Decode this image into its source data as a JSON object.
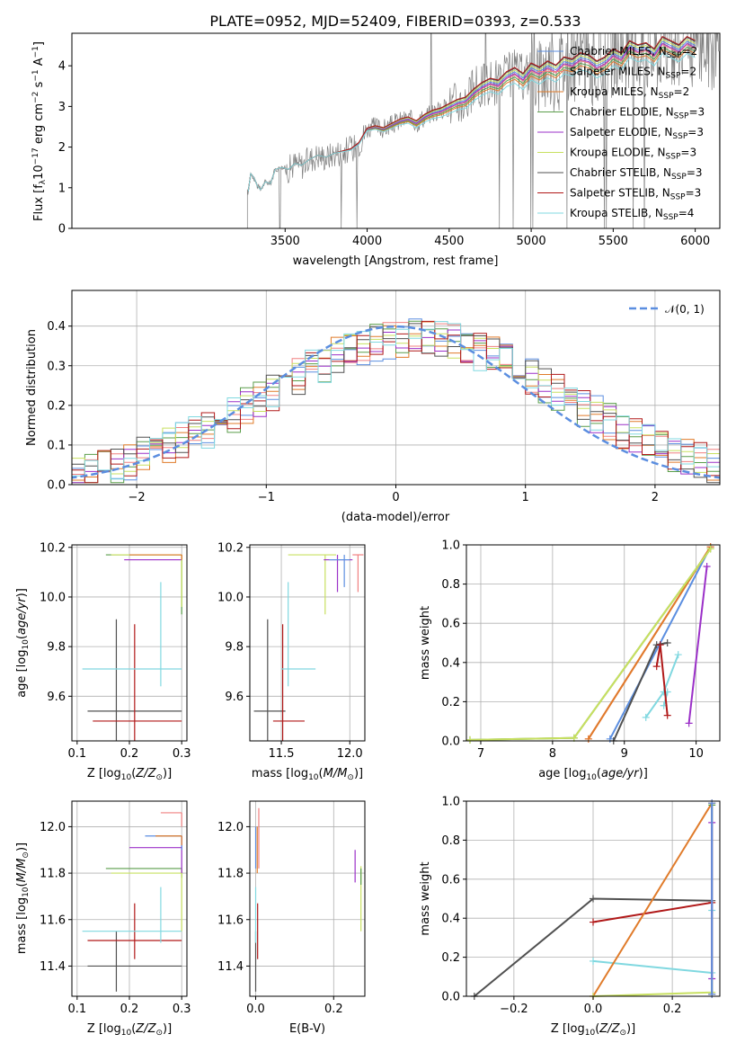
{
  "figure": {
    "title": "PLATE=0952, MJD=52409, FIBERID=0393, z=0.533"
  },
  "colors": {
    "chabrier_miles": "#5b8ee0",
    "salpeter_miles": "#f08080",
    "kroupa_miles": "#e07b2a",
    "chabrier_elodie": "#5a9e4a",
    "salpeter_elodie": "#9b30c8",
    "kroupa_elodie": "#c8e060",
    "chabrier_stelib": "#505050",
    "salpeter_stelib": "#b01818",
    "kroupa_stelib": "#80d8e0",
    "data": "#808080",
    "normal": "#5b8ee0"
  },
  "chart_data": [
    {
      "id": "spectrum",
      "type": "line",
      "title": "PLATE=0952, MJD=52409, FIBERID=0393, z=0.533",
      "xlabel": "wavelength [Angstrom, rest frame]",
      "ylabel": "Flux [f_λ 10^-17 erg cm^-2 s^-1 A^-1]",
      "xlim": [
        2200,
        6150
      ],
      "ylim": [
        0,
        4.8
      ],
      "xticks": [
        "3500",
        "4000",
        "4500",
        "5000",
        "5500",
        "6000"
      ],
      "yticks": [
        "0",
        "1",
        "2",
        "3",
        "4"
      ],
      "legend_position": "right",
      "legend": [
        {
          "label": "Chabrier MILES, N_SSP=2",
          "color": "#5b8ee0"
        },
        {
          "label": "Salpeter MILES, N_SSP=2",
          "color": "#f08080"
        },
        {
          "label": "Kroupa MILES, N_SSP=2",
          "color": "#e07b2a"
        },
        {
          "label": "Chabrier ELODIE, N_SSP=3",
          "color": "#5a9e4a"
        },
        {
          "label": "Salpeter ELODIE, N_SSP=3",
          "color": "#9b30c8"
        },
        {
          "label": "Kroupa ELODIE, N_SSP=3",
          "color": "#c8e060"
        },
        {
          "label": "Chabrier STELIB, N_SSP=3",
          "color": "#505050"
        },
        {
          "label": "Salpeter STELIB, N_SSP=3",
          "color": "#b01818"
        },
        {
          "label": "Kroupa STELIB, N_SSP=4",
          "color": "#80d8e0"
        }
      ],
      "model_x": [
        3275,
        3290,
        3310,
        3330,
        3350,
        3380,
        3410,
        3440,
        3480,
        3520,
        3560,
        3600,
        3650,
        3700,
        3750,
        3800,
        3850,
        3900,
        3950,
        4000,
        4050,
        4100,
        4150,
        4200,
        4250,
        4300,
        4350,
        4400,
        4450,
        4500,
        4550,
        4600,
        4650,
        4700,
        4750,
        4800,
        4850,
        4900,
        4950,
        5000,
        5050,
        5100,
        5150,
        5200,
        5250,
        5300,
        5350,
        5400,
        5450,
        5500,
        5550,
        5600,
        5650,
        5700,
        5750,
        5800,
        5850,
        5900,
        5950,
        6000
      ],
      "model_y": [
        0.9,
        1.35,
        1.25,
        1.05,
        0.95,
        1.15,
        1.1,
        1.45,
        1.5,
        1.45,
        1.6,
        1.55,
        1.7,
        1.8,
        1.75,
        1.85,
        1.9,
        1.95,
        2.1,
        2.45,
        2.5,
        2.45,
        2.55,
        2.65,
        2.7,
        2.6,
        2.75,
        2.85,
        2.9,
        3.0,
        3.1,
        3.15,
        3.35,
        3.5,
        3.6,
        3.55,
        3.75,
        3.85,
        3.7,
        3.95,
        3.85,
        4.0,
        3.9,
        4.1,
        4.05,
        4.2,
        4.15,
        4.0,
        4.1,
        4.3,
        4.2,
        4.5,
        4.4,
        4.45,
        4.3,
        4.6,
        4.5,
        4.4,
        4.6,
        4.5
      ],
      "series_offsets": [
        0,
        -0.08,
        -0.2,
        -0.14,
        -0.05,
        0.05,
        0.1,
        0.12,
        -0.3
      ]
    },
    {
      "id": "residuals",
      "type": "line",
      "xlabel": "(data-model)/error",
      "ylabel": "Normed distribution",
      "xlim": [
        -2.5,
        2.5
      ],
      "ylim": [
        0,
        0.49
      ],
      "xticks": [
        "−2",
        "−1",
        "0",
        "1",
        "2"
      ],
      "yticks": [
        "0.0",
        "0.1",
        "0.2",
        "0.3",
        "0.4"
      ],
      "legend_position": "top-right",
      "legend": [
        {
          "label": "𝒩(0, 1)",
          "color": "#5b8ee0",
          "dashed": true
        }
      ],
      "normal_curve": {
        "mean": 0,
        "sigma": 1
      }
    },
    {
      "id": "age_vs_Z",
      "type": "scatter",
      "xlabel": "Z [log10(Z/Z⊙)]",
      "ylabel": "age  [log10(age/yr)]",
      "xlim": [
        0.09,
        0.31
      ],
      "ylim": [
        9.42,
        10.21
      ],
      "xticks": [
        "0.1",
        "0.2",
        "0.3"
      ],
      "yticks": [
        "9.6",
        "9.8",
        "10.0",
        "10.2"
      ],
      "points": [
        {
          "x": 0.175,
          "y": 9.54,
          "xerr": [
            0.12,
            0.3
          ],
          "yerr": [
            9.4,
            9.91
          ],
          "color": "#505050"
        },
        {
          "x": 0.21,
          "y": 9.5,
          "xerr": [
            0.13,
            0.3
          ],
          "yerr": [
            9.42,
            9.89
          ],
          "color": "#b01818"
        },
        {
          "x": 0.26,
          "y": 9.71,
          "xerr": [
            0.11,
            0.3
          ],
          "yerr": [
            9.64,
            10.06
          ],
          "color": "#80d8e0"
        },
        {
          "x": 0.3,
          "y": 10.17,
          "xerr": [
            0.155,
            0.3
          ],
          "yerr": [
            9.93,
            10.17
          ],
          "color": "#5a9e4a"
        },
        {
          "x": 0.3,
          "y": 10.15,
          "xerr": [
            0.19,
            0.3
          ],
          "yerr": [
            10.15,
            10.17
          ],
          "color": "#9b30c8"
        },
        {
          "x": 0.3,
          "y": 10.17,
          "xerr": [
            0.165,
            0.3
          ],
          "yerr": [
            9.96,
            10.17
          ],
          "color": "#c8e060"
        },
        {
          "x": 0.3,
          "y": 10.17,
          "xerr": [
            0.2,
            0.3
          ],
          "yerr": [
            10.15,
            10.17
          ],
          "color": "#e07b2a"
        }
      ]
    },
    {
      "id": "age_vs_mass",
      "type": "scatter",
      "xlabel": "mass [log10(M/M⊙)]",
      "xlim": [
        11.27,
        12.11
      ],
      "ylim": [
        9.42,
        10.21
      ],
      "xticks": [
        "11.5",
        "12.0"
      ],
      "yticks": [
        "9.6",
        "9.8",
        "10.0",
        "10.2"
      ],
      "points": [
        {
          "x": 11.4,
          "y": 9.54,
          "xerr": [
            11.3,
            11.53
          ],
          "yerr": [
            9.4,
            9.91
          ],
          "color": "#505050"
        },
        {
          "x": 11.51,
          "y": 9.5,
          "xerr": [
            11.44,
            11.67
          ],
          "yerr": [
            9.42,
            9.89
          ],
          "color": "#b01818"
        },
        {
          "x": 11.55,
          "y": 9.71,
          "xerr": [
            11.5,
            11.75
          ],
          "yerr": [
            9.64,
            10.06
          ],
          "color": "#80d8e0"
        },
        {
          "x": 11.82,
          "y": 10.17,
          "xerr": [
            11.55,
            11.9
          ],
          "yerr": [
            9.93,
            10.17
          ],
          "color": "#c8e060"
        },
        {
          "x": 11.91,
          "y": 10.15,
          "xerr": [
            11.81,
            12.02
          ],
          "yerr": [
            10.02,
            10.17
          ],
          "color": "#9b30c8"
        },
        {
          "x": 11.96,
          "y": 10.15,
          "xerr": [
            11.85,
            12.0
          ],
          "yerr": [
            10.04,
            10.17
          ],
          "color": "#5b8ee0"
        },
        {
          "x": 12.06,
          "y": 10.17,
          "xerr": [
            12.02,
            12.1
          ],
          "yerr": [
            10.02,
            10.17
          ],
          "color": "#f08080"
        }
      ]
    },
    {
      "id": "weight_vs_age",
      "type": "line",
      "xlabel": "age  [log10(age/yr)]",
      "ylabel": "mass weight",
      "xlim": [
        6.8,
        10.33
      ],
      "ylim": [
        0,
        1.0
      ],
      "xticks": [
        "7",
        "8",
        "9",
        "10"
      ],
      "yticks": [
        "0.0",
        "0.2",
        "0.4",
        "0.6",
        "0.8",
        "1.0"
      ],
      "series": [
        {
          "color": "#5b8ee0",
          "x": [
            8.8,
            10.2
          ],
          "y": [
            0.01,
            0.99
          ]
        },
        {
          "color": "#f08080",
          "x": [
            8.5,
            10.2
          ],
          "y": [
            0.01,
            0.99
          ]
        },
        {
          "color": "#e07b2a",
          "x": [
            8.5,
            10.2
          ],
          "y": [
            0.01,
            0.99
          ]
        },
        {
          "color": "#5a9e4a",
          "x": [
            6.85,
            8.3,
            10.2
          ],
          "y": [
            0.005,
            0.015,
            0.98
          ]
        },
        {
          "color": "#c8e060",
          "x": [
            6.85,
            8.3,
            10.2
          ],
          "y": [
            0.005,
            0.015,
            0.98
          ]
        },
        {
          "color": "#9b30c8",
          "x": [
            9.9,
            10.15
          ],
          "y": [
            0.09,
            0.89
          ]
        },
        {
          "color": "#505050",
          "x": [
            8.85,
            9.45,
            9.6
          ],
          "y": [
            0.0,
            0.49,
            0.5
          ]
        },
        {
          "color": "#80d8e0",
          "x": [
            9.3,
            9.55,
            9.75
          ],
          "y": [
            0.12,
            0.25,
            0.44
          ]
        },
        {
          "color": "#80d8e0",
          "x": [
            9.55,
            9.6
          ],
          "y": [
            0.18,
            0.25
          ]
        },
        {
          "color": "#b01818",
          "x": [
            9.45,
            9.5,
            9.6
          ],
          "y": [
            0.38,
            0.49,
            0.13
          ]
        }
      ]
    },
    {
      "id": "mass_vs_Z",
      "type": "scatter",
      "xlabel": "Z [log10(Z/Z⊙)]",
      "ylabel": "mass [log10(M/M⊙)]",
      "xlim": [
        0.09,
        0.31
      ],
      "ylim": [
        11.27,
        12.11
      ],
      "xticks": [
        "0.1",
        "0.2",
        "0.3"
      ],
      "yticks": [
        "11.4",
        "11.6",
        "11.8",
        "12.0"
      ],
      "points": [
        {
          "x": 0.175,
          "y": 11.4,
          "xerr": [
            0.12,
            0.3
          ],
          "yerr": [
            11.29,
            11.55
          ],
          "color": "#505050"
        },
        {
          "x": 0.21,
          "y": 11.51,
          "xerr": [
            0.12,
            0.3
          ],
          "yerr": [
            11.43,
            11.67
          ],
          "color": "#b01818"
        },
        {
          "x": 0.26,
          "y": 11.55,
          "xerr": [
            0.11,
            0.3
          ],
          "yerr": [
            11.5,
            11.74
          ],
          "color": "#80d8e0"
        },
        {
          "x": 0.3,
          "y": 11.82,
          "xerr": [
            0.155,
            0.3
          ],
          "yerr": [
            11.78,
            11.82
          ],
          "color": "#5a9e4a"
        },
        {
          "x": 0.3,
          "y": 11.8,
          "xerr": [
            0.165,
            0.3
          ],
          "yerr": [
            11.55,
            11.82
          ],
          "color": "#c8e060"
        },
        {
          "x": 0.3,
          "y": 11.91,
          "xerr": [
            0.2,
            0.3
          ],
          "yerr": [
            11.8,
            11.96
          ],
          "color": "#9b30c8"
        },
        {
          "x": 0.3,
          "y": 11.96,
          "xerr": [
            0.23,
            0.3
          ],
          "yerr": [
            11.9,
            11.96
          ],
          "color": "#5b8ee0"
        },
        {
          "x": 0.3,
          "y": 11.96,
          "xerr": [
            0.25,
            0.3
          ],
          "yerr": [
            11.92,
            11.96
          ],
          "color": "#e07b2a"
        },
        {
          "x": 0.3,
          "y": 12.06,
          "xerr": [
            0.26,
            0.3
          ],
          "yerr": [
            12.0,
            12.06
          ],
          "color": "#f08080"
        }
      ]
    },
    {
      "id": "mass_vs_ebv",
      "type": "scatter",
      "xlabel": "E(B-V)",
      "xlim": [
        -0.015,
        0.28
      ],
      "ylim": [
        11.27,
        12.11
      ],
      "xticks": [
        "0.0",
        "0.2"
      ],
      "yticks": [
        "11.4",
        "11.6",
        "11.8",
        "12.0"
      ],
      "points": [
        {
          "x": 0.0,
          "y": 11.4,
          "yerr": [
            11.29,
            11.55
          ],
          "color": "#505050"
        },
        {
          "x": 0.005,
          "y": 11.51,
          "yerr": [
            11.43,
            11.67
          ],
          "color": "#b01818"
        },
        {
          "x": 0.0,
          "y": 11.62,
          "yerr": [
            11.5,
            11.74
          ],
          "color": "#80d8e0"
        },
        {
          "x": 0.0,
          "y": 11.91,
          "yerr": [
            11.82,
            12.0
          ],
          "color": "#5b8ee0"
        },
        {
          "x": 0.008,
          "y": 11.95,
          "yerr": [
            11.82,
            12.08
          ],
          "color": "#f08080"
        },
        {
          "x": 0.004,
          "y": 11.9,
          "yerr": [
            11.8,
            12.0
          ],
          "color": "#e07b2a"
        },
        {
          "x": 0.255,
          "y": 11.85,
          "yerr": [
            11.76,
            11.9
          ],
          "color": "#9b30c8"
        },
        {
          "x": 0.27,
          "y": 11.72,
          "yerr": [
            11.55,
            11.83
          ],
          "color": "#c8e060"
        },
        {
          "x": 0.27,
          "y": 11.78,
          "yerr": [
            11.75,
            11.82
          ],
          "color": "#5a9e4a"
        }
      ]
    },
    {
      "id": "weight_vs_Z",
      "type": "line",
      "xlabel": "Z [log10(Z/Z⊙)]",
      "ylabel": "mass weight",
      "xlim": [
        -0.32,
        0.32
      ],
      "ylim": [
        0,
        1.0
      ],
      "xticks": [
        "−0.2",
        "0.0",
        "0.2"
      ],
      "yticks": [
        "0.0",
        "0.2",
        "0.4",
        "0.6",
        "0.8",
        "1.0"
      ],
      "series": [
        {
          "color": "#505050",
          "x": [
            -0.3,
            0.0,
            0.3
          ],
          "y": [
            0.0,
            0.5,
            0.49
          ]
        },
        {
          "color": "#b01818",
          "x": [
            0.0,
            0.3
          ],
          "y": [
            0.38,
            0.48
          ]
        },
        {
          "color": "#80d8e0",
          "x": [
            0.0,
            0.3,
            0.3
          ],
          "y": [
            0.18,
            0.12,
            0.44
          ]
        },
        {
          "color": "#e07b2a",
          "x": [
            0.0,
            0.3
          ],
          "y": [
            0.0,
            0.99
          ]
        },
        {
          "color": "#c8e060",
          "x": [
            0.0,
            0.3,
            0.3
          ],
          "y": [
            0.0,
            0.02,
            0.99
          ]
        },
        {
          "color": "#5a9e4a",
          "x": [
            0.3,
            0.3
          ],
          "y": [
            0.01,
            0.98
          ]
        },
        {
          "color": "#9b30c8",
          "x": [
            0.3,
            0.3
          ],
          "y": [
            0.09,
            0.89
          ]
        },
        {
          "color": "#f08080",
          "x": [
            0.3,
            0.3
          ],
          "y": [
            0.01,
            0.99
          ]
        },
        {
          "color": "#5b8ee0",
          "x": [
            0.3,
            0.3
          ],
          "y": [
            0.01,
            0.99
          ]
        }
      ]
    }
  ]
}
